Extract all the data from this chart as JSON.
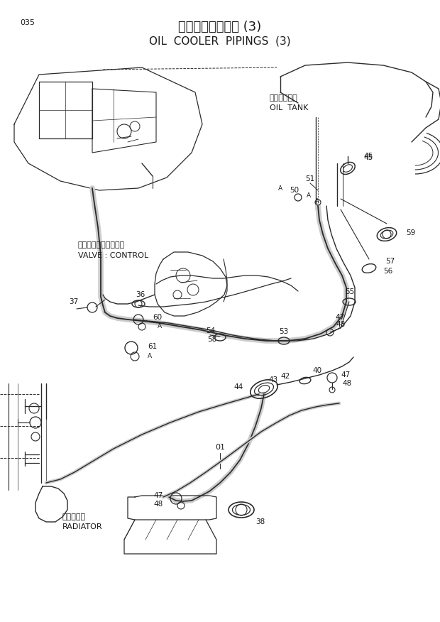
{
  "title_jp": "オイルクーラ配管 (3)",
  "title_en": "OIL  COOLER  PIPINGS  (3)",
  "page_num": "035",
  "bg_color": "#ffffff",
  "lc": "#2a2a2a",
  "tc": "#1a1a1a",
  "label_oil_tank_jp": "オイルタンク",
  "label_oil_tank_en": "OIL  TANK",
  "label_valve_jp": "バルブ：コントロール",
  "label_valve_en": "VALVE : CONTROL",
  "label_radiator_jp": "ラジエータ",
  "label_radiator_en": "RADIATOR",
  "figsize": [
    6.2,
    8.76
  ],
  "dpi": 100
}
